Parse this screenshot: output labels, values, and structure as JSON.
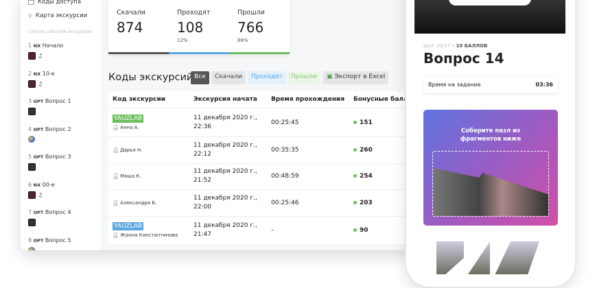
{
  "sidebar": {
    "nav": [
      {
        "label": "Коды доступа",
        "icon": "keys-icon"
      },
      {
        "label": "Карта экскурсии",
        "icon": "map-route-icon"
      }
    ],
    "section_label": "Список событий экскурсии",
    "events": [
      {
        "num": "1",
        "type": "NX",
        "name": "Начало",
        "media": [
          "video",
          "audio"
        ]
      },
      {
        "num": "2",
        "type": "NX",
        "name": "10-е",
        "media": [
          "video",
          "audio"
        ]
      },
      {
        "num": "3",
        "type": "ОРТ",
        "name": "Вопрос 1",
        "media": [
          "image"
        ]
      },
      {
        "num": "4",
        "type": "ОРТ",
        "name": "Вопрос 2",
        "media": [
          "globe"
        ]
      },
      {
        "num": "5",
        "type": "ОРТ",
        "name": "Вопрос 3",
        "media": [
          "image"
        ]
      },
      {
        "num": "6",
        "type": "NX",
        "name": "00-е",
        "media": [
          "video",
          "audio"
        ]
      },
      {
        "num": "7",
        "type": "ОРТ",
        "name": "Вопрос 4",
        "media": [
          "image"
        ]
      },
      {
        "num": "8",
        "type": "ОРТ",
        "name": "Вопрос 5",
        "media": [
          "globe"
        ]
      }
    ]
  },
  "stats": [
    {
      "label": "Скачали",
      "value": "874",
      "pct": "",
      "color": "#555555"
    },
    {
      "label": "Проходят",
      "value": "108",
      "pct": "12%",
      "color": "#5aa7e0"
    },
    {
      "label": "Прошли",
      "value": "766",
      "pct": "88%",
      "color": "#6cbf5a"
    }
  ],
  "codes": {
    "title": "Коды экскурсий",
    "filters": [
      "Все",
      "Скачали",
      "Проходят",
      "Прошли"
    ],
    "export": "Экспорт в Excel",
    "columns": [
      "Код экскурсии",
      "Экскурсия начата",
      "Время прохождения",
      "Бонусные баллы"
    ],
    "rows": [
      {
        "tag": "YAUZLAB",
        "tag_color": "#6cbf5a",
        "user": "Анна А.",
        "start": "11 декабря 2020 г.,",
        "time": "22:36",
        "duration": "00:25:45",
        "bonus": "151"
      },
      {
        "tag": "",
        "tag_color": "",
        "user": "Дарья Н.",
        "start": "11 декабря 2020 г.,",
        "time": "22:12",
        "duration": "00:35:35",
        "bonus": "260"
      },
      {
        "tag": "",
        "tag_color": "",
        "user": "Маша К.",
        "start": "11 декабря 2020 г.,",
        "time": "21:52",
        "duration": "00:48:59",
        "bonus": "254"
      },
      {
        "tag": "",
        "tag_color": "",
        "user": "Александра Б.",
        "start": "11 декабря 2020 г.,",
        "time": "22:00",
        "duration": "00:25:46",
        "bonus": "203"
      },
      {
        "tag": "YAUZLAB",
        "tag_color": "#5aa7e0",
        "user": "Жанна Константинова",
        "start": "11 декабря 2020 г.,",
        "time": "21:47",
        "duration": "–",
        "bonus": "90"
      }
    ]
  },
  "phone": {
    "step": "ШАГ 20/37",
    "points": "10 БАЛЛОВ",
    "question": "Вопрос 14",
    "timer_label": "Время на задание",
    "timer_value": "03:36",
    "puzzle_text": "Соберите пазл из фрагментов ниже"
  }
}
